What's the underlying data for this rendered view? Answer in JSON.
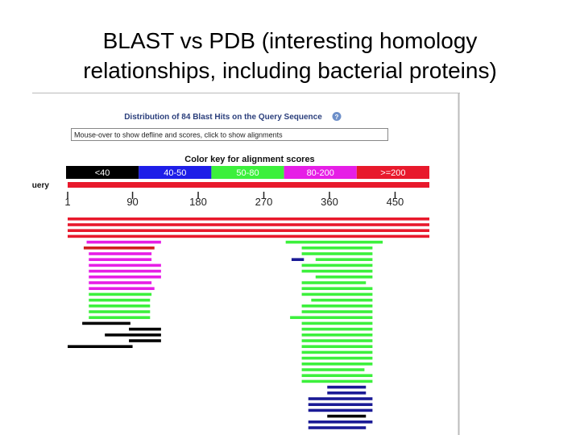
{
  "title_lines": [
    "BLAST vs PDB (interesting homology",
    "relationships, including bacterial proteins)"
  ],
  "screenshot": {
    "heading": "Distribution of 84 Blast Hits on the Query Sequence",
    "help_icon": "?",
    "mouseover_text": "Mouse-over to show defline and scores, click to show alignments",
    "color_key": {
      "title": "Color key for alignment scores",
      "ranges": [
        {
          "label": "<40",
          "color": "#000000"
        },
        {
          "label": "40-50",
          "color": "#1e1ee8"
        },
        {
          "label": "50-80",
          "color": "#3cf03c"
        },
        {
          "label": "80-200",
          "color": "#e61ee6"
        },
        {
          "label": ">=200",
          "color": "#e8192c"
        }
      ]
    },
    "query": {
      "label": "Query",
      "start": 1,
      "end": 497,
      "color": "#e8192c"
    },
    "axis": {
      "xlim": [
        1,
        497
      ],
      "xticks": [
        1,
        90,
        180,
        270,
        360,
        450
      ]
    },
    "hit_rows": [
      [
        {
          "start": 1,
          "end": 497,
          "color": "#e8192c"
        }
      ],
      [
        {
          "start": 1,
          "end": 497,
          "color": "#e8192c"
        }
      ],
      [
        {
          "start": 1,
          "end": 497,
          "color": "#e8192c"
        }
      ],
      [
        {
          "start": 1,
          "end": 497,
          "color": "#e8192c"
        }
      ],
      [
        {
          "start": 27,
          "end": 129,
          "color": "#e61ee6"
        },
        {
          "start": 300,
          "end": 433,
          "color": "#3cf03c"
        }
      ],
      [
        {
          "start": 23,
          "end": 120,
          "color": "#d02020"
        },
        {
          "start": 322,
          "end": 419,
          "color": "#3cf03c"
        }
      ],
      [
        {
          "start": 30,
          "end": 116,
          "color": "#e61ee6"
        },
        {
          "start": 322,
          "end": 419,
          "color": "#3cf03c"
        }
      ],
      [
        {
          "start": 30,
          "end": 116,
          "color": "#e61ee6"
        },
        {
          "start": 308,
          "end": 325,
          "color": "#1a1a96"
        },
        {
          "start": 341,
          "end": 419,
          "color": "#3cf03c"
        }
      ],
      [
        {
          "start": 30,
          "end": 129,
          "color": "#e61ee6"
        },
        {
          "start": 322,
          "end": 419,
          "color": "#3cf03c"
        }
      ],
      [
        {
          "start": 30,
          "end": 129,
          "color": "#e61ee6"
        },
        {
          "start": 322,
          "end": 419,
          "color": "#3cf03c"
        }
      ],
      [
        {
          "start": 30,
          "end": 129,
          "color": "#e61ee6"
        },
        {
          "start": 341,
          "end": 419,
          "color": "#3cf03c"
        }
      ],
      [
        {
          "start": 30,
          "end": 116,
          "color": "#e61ee6"
        },
        {
          "start": 322,
          "end": 410,
          "color": "#3cf03c"
        }
      ],
      [
        {
          "start": 30,
          "end": 120,
          "color": "#e61ee6"
        },
        {
          "start": 322,
          "end": 419,
          "color": "#3cf03c"
        }
      ],
      [
        {
          "start": 30,
          "end": 116,
          "color": "#3cf03c"
        },
        {
          "start": 322,
          "end": 419,
          "color": "#3cf03c"
        }
      ],
      [
        {
          "start": 30,
          "end": 114,
          "color": "#3cf03c"
        },
        {
          "start": 335,
          "end": 419,
          "color": "#3cf03c"
        }
      ],
      [
        {
          "start": 30,
          "end": 114,
          "color": "#3cf03c"
        },
        {
          "start": 322,
          "end": 419,
          "color": "#3cf03c"
        }
      ],
      [
        {
          "start": 30,
          "end": 114,
          "color": "#3cf03c"
        },
        {
          "start": 322,
          "end": 419,
          "color": "#3cf03c"
        }
      ],
      [
        {
          "start": 30,
          "end": 114,
          "color": "#3cf03c"
        },
        {
          "start": 306,
          "end": 419,
          "color": "#3cf03c"
        }
      ],
      [
        {
          "start": 21,
          "end": 87,
          "color": "#000000"
        },
        {
          "start": 322,
          "end": 419,
          "color": "#3cf03c"
        }
      ],
      [
        {
          "start": 85,
          "end": 129,
          "color": "#000000"
        },
        {
          "start": 322,
          "end": 419,
          "color": "#3cf03c"
        }
      ],
      [
        {
          "start": 52,
          "end": 129,
          "color": "#000000"
        },
        {
          "start": 322,
          "end": 419,
          "color": "#3cf03c"
        }
      ],
      [
        {
          "start": 85,
          "end": 129,
          "color": "#000000"
        },
        {
          "start": 322,
          "end": 419,
          "color": "#3cf03c"
        }
      ],
      [
        {
          "start": 1,
          "end": 90,
          "color": "#000000"
        },
        {
          "start": 322,
          "end": 419,
          "color": "#3cf03c"
        }
      ],
      [
        {
          "start": 322,
          "end": 419,
          "color": "#3cf03c"
        }
      ],
      [
        {
          "start": 322,
          "end": 419,
          "color": "#3cf03c"
        }
      ],
      [
        {
          "start": 322,
          "end": 419,
          "color": "#3cf03c"
        }
      ],
      [
        {
          "start": 322,
          "end": 408,
          "color": "#3cf03c"
        }
      ],
      [
        {
          "start": 322,
          "end": 419,
          "color": "#3cf03c"
        }
      ],
      [
        {
          "start": 322,
          "end": 419,
          "color": "#3cf03c"
        }
      ],
      [
        {
          "start": 357,
          "end": 410,
          "color": "#1a1a96"
        }
      ],
      [
        {
          "start": 357,
          "end": 410,
          "color": "#1a1a96"
        }
      ],
      [
        {
          "start": 331,
          "end": 419,
          "color": "#1a1a96"
        }
      ],
      [
        {
          "start": 331,
          "end": 419,
          "color": "#1a1a96"
        }
      ],
      [
        {
          "start": 331,
          "end": 419,
          "color": "#1a1a96"
        }
      ],
      [
        {
          "start": 357,
          "end": 410,
          "color": "#000000"
        }
      ],
      [
        {
          "start": 331,
          "end": 419,
          "color": "#1a1a96"
        }
      ],
      [
        {
          "start": 331,
          "end": 410,
          "color": "#1a1a96"
        }
      ]
    ]
  }
}
